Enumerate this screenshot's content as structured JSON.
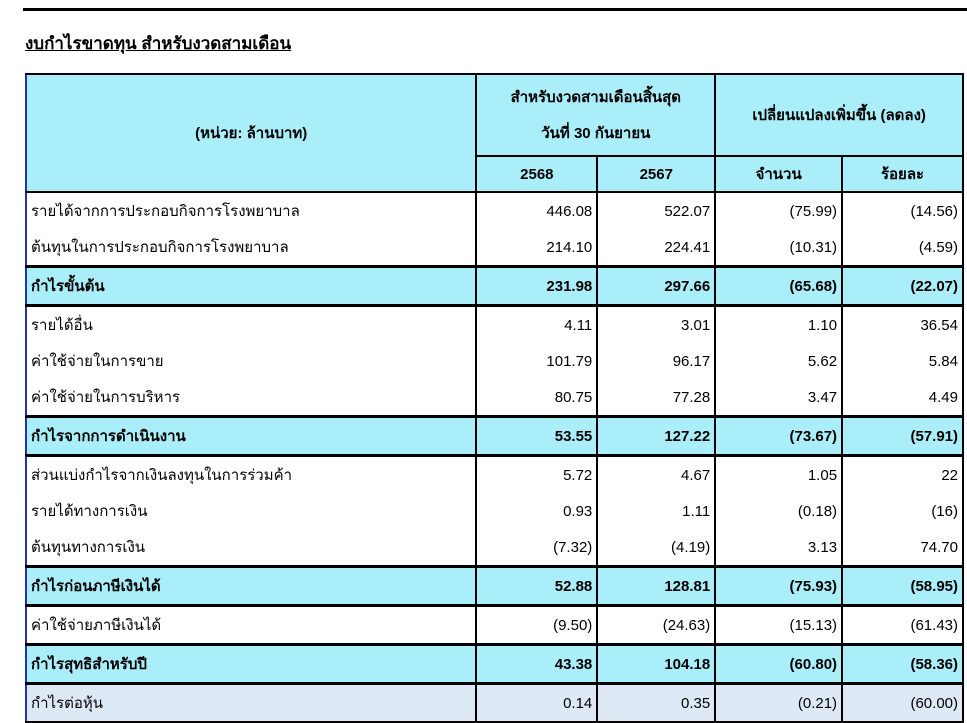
{
  "title": "งบกำไรขาดทุน สำหรับงวดสามเดือน",
  "header": {
    "unit": "(หน่วย: ล้านบาท)",
    "period_line1": "สำหรับงวดสามเดือนสิ้นสุด",
    "period_line2": "วันที่ 30 กันยายน",
    "change": "เปลี่ยนแปลงเพิ่มขึ้น (ลดลง)",
    "y2568": "2568",
    "y2567": "2567",
    "amount": "จำนวน",
    "percent": "ร้อยละ"
  },
  "colors": {
    "header_bg": "#aaeefa",
    "eps_bg": "#dde9f5"
  },
  "rows": [
    {
      "label": "รายได้จากการประกอบกิจการโรงพยาบาล",
      "v2568": "446.08",
      "v2567": "522.07",
      "amount": "(75.99)",
      "percent": "(14.56)",
      "style": "normal"
    },
    {
      "label": "ต้นทุนในการประกอบกิจการโรงพยาบาล",
      "v2568": "214.10",
      "v2567": "224.41",
      "amount": "(10.31)",
      "percent": "(4.59)",
      "style": "normal"
    },
    {
      "label": "กำไรขั้นต้น",
      "v2568": "231.98",
      "v2567": "297.66",
      "amount": "(65.68)",
      "percent": "(22.07)",
      "style": "bold"
    },
    {
      "label": "รายได้อื่น",
      "v2568": "4.11",
      "v2567": "3.01",
      "amount": "1.10",
      "percent": "36.54",
      "style": "normal"
    },
    {
      "label": "ค่าใช้จ่ายในการขาย",
      "v2568": "101.79",
      "v2567": "96.17",
      "amount": "5.62",
      "percent": "5.84",
      "style": "normal"
    },
    {
      "label": "ค่าใช้จ่ายในการบริหาร",
      "v2568": "80.75",
      "v2567": "77.28",
      "amount": "3.47",
      "percent": "4.49",
      "style": "normal"
    },
    {
      "label": "กำไรจากการดำเนินงาน",
      "v2568": "53.55",
      "v2567": "127.22",
      "amount": "(73.67)",
      "percent": "(57.91)",
      "style": "bold"
    },
    {
      "label": "ส่วนแบ่งกำไรจากเงินลงทุนในการร่วมค้า",
      "v2568": "5.72",
      "v2567": "4.67",
      "amount": "1.05",
      "percent": "22",
      "style": "normal"
    },
    {
      "label": "รายได้ทางการเงิน",
      "v2568": "0.93",
      "v2567": "1.11",
      "amount": "(0.18)",
      "percent": "(16)",
      "style": "normal"
    },
    {
      "label": "ต้นทุนทางการเงิน",
      "v2568": "(7.32)",
      "v2567": "(4.19)",
      "amount": "3.13",
      "percent": "74.70",
      "style": "normal"
    },
    {
      "label": "กำไรก่อนภาษีเงินได้",
      "v2568": "52.88",
      "v2567": "128.81",
      "amount": "(75.93)",
      "percent": "(58.95)",
      "style": "bold"
    },
    {
      "label": "ค่าใช้จ่ายภาษีเงินได้",
      "v2568": "(9.50)",
      "v2567": "(24.63)",
      "amount": "(15.13)",
      "percent": "(61.43)",
      "style": "normal"
    },
    {
      "label": "กำไรสุทธิสำหรับปี",
      "v2568": "43.38",
      "v2567": "104.18",
      "amount": "(60.80)",
      "percent": "(58.36)",
      "style": "bold"
    },
    {
      "label": "กำไรต่อหุ้น",
      "v2568": "0.14",
      "v2567": "0.35",
      "amount": "(0.21)",
      "percent": "(60.00)",
      "style": "eps"
    }
  ]
}
